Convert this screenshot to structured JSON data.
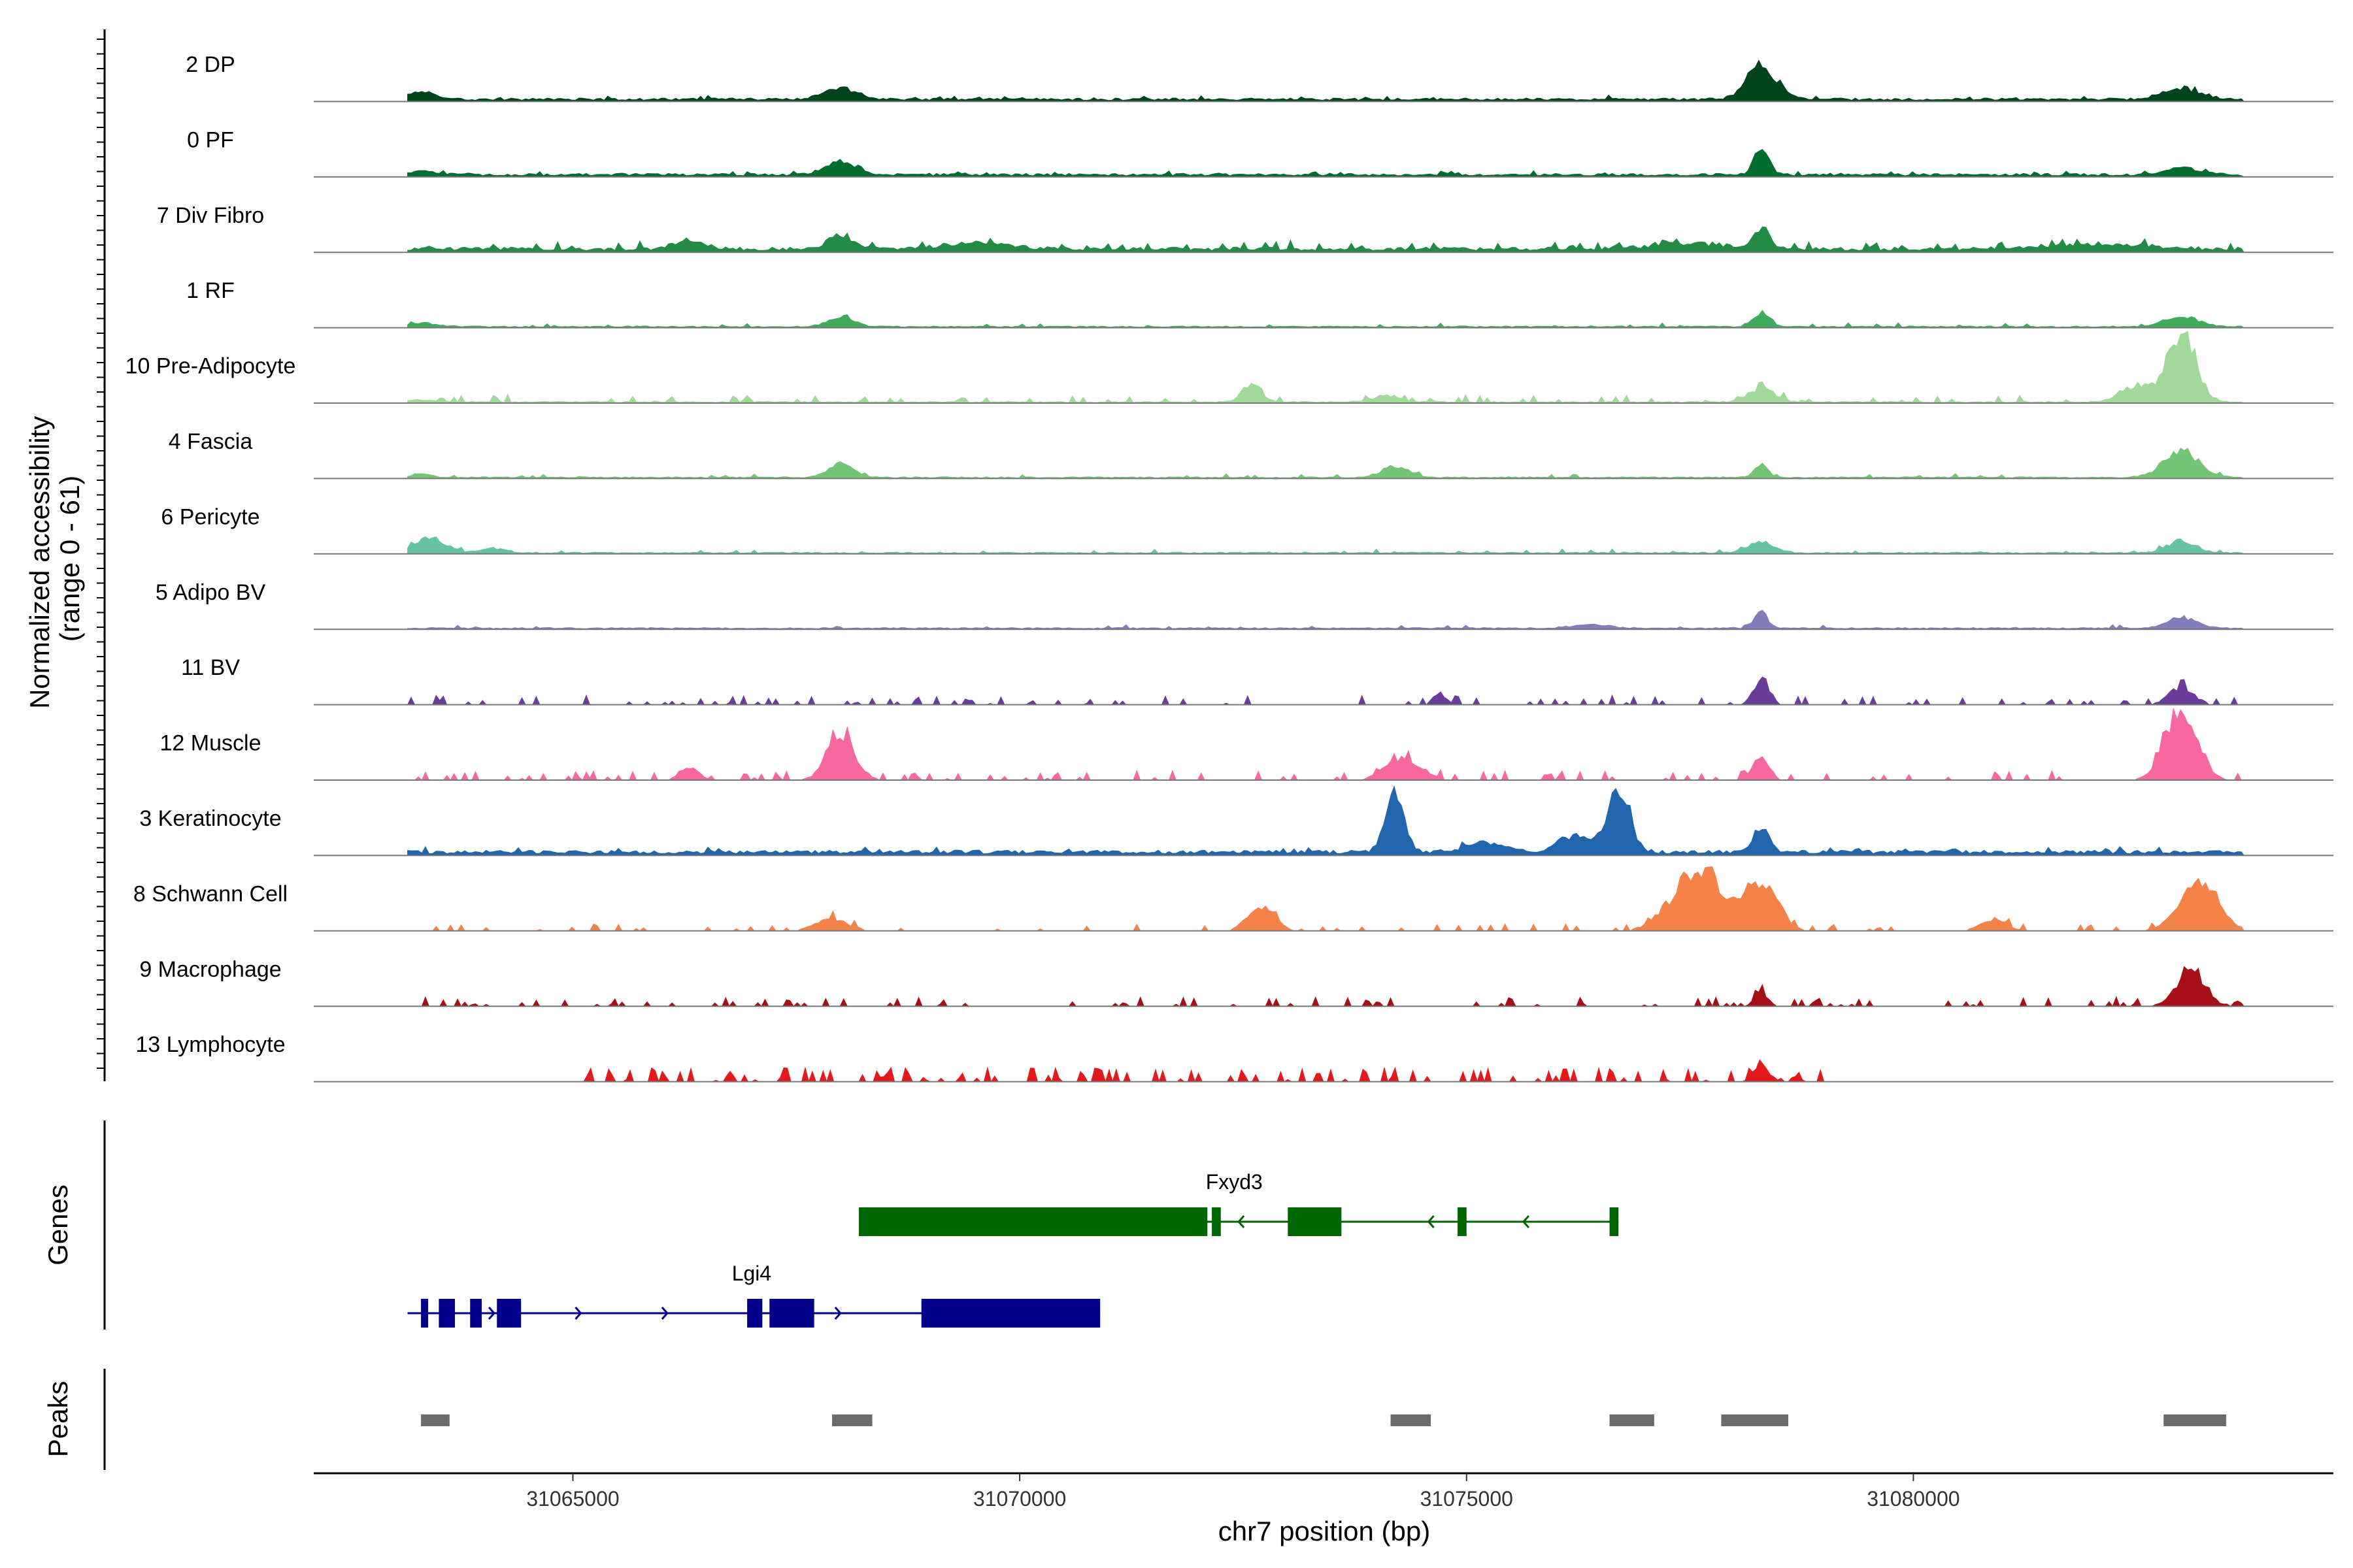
{
  "chart_data": {
    "type": "area",
    "title": "",
    "xlabel": "chr7 position (bp)",
    "ylabel_line1": "Normalized accessibility",
    "ylabel_line2": "(range 0 - 61)",
    "xlim": [
      31062100,
      31084700
    ],
    "ylim": [
      0,
      61
    ],
    "x_ticks": [
      31065000,
      31070000,
      31075000,
      31080000
    ],
    "x_tick_labels": [
      "31065000",
      "31070000",
      "31075000",
      "31080000"
    ],
    "bins": {
      "start": 31063150,
      "end": 31083700,
      "step": 40
    },
    "tracks": [
      {
        "name": "2 DP",
        "color": "#00441b",
        "baseline": 2,
        "ends": [
          31063150,
          31083700
        ],
        "peaks": [
          [
            31063300,
            220,
            6
          ],
          [
            31068000,
            260,
            10
          ],
          [
            31078300,
            240,
            28
          ],
          [
            31083000,
            300,
            9
          ]
        ]
      },
      {
        "name": "0 PF",
        "color": "#006d2c",
        "baseline": 2,
        "ends": [
          31063150,
          31083700
        ],
        "peaks": [
          [
            31063300,
            220,
            3
          ],
          [
            31068000,
            240,
            12
          ],
          [
            31078300,
            120,
            22
          ],
          [
            31083000,
            260,
            6
          ]
        ]
      },
      {
        "name": "7 Div Fibro",
        "color": "#238b45",
        "baseline": 3,
        "ends": [
          31063150,
          31083700
        ],
        "noise": 3,
        "peaks": [
          [
            31066300,
            250,
            7
          ],
          [
            31068000,
            200,
            12
          ],
          [
            31069500,
            500,
            5
          ],
          [
            31078300,
            120,
            18
          ],
          [
            31077500,
            600,
            5
          ],
          [
            31082000,
            800,
            4
          ]
        ]
      },
      {
        "name": "1 RF",
        "color": "#41ab5d",
        "baseline": 1,
        "ends": [
          31063150,
          31083700
        ],
        "peaks": [
          [
            31063300,
            220,
            3
          ],
          [
            31068000,
            200,
            9
          ],
          [
            31078300,
            120,
            12
          ],
          [
            31083000,
            260,
            9
          ]
        ]
      },
      {
        "name": "10 Pre-Adipocyte",
        "color": "#a1d99b",
        "baseline": 1,
        "ends": [
          31063150,
          31083700
        ],
        "noise": 3,
        "peaks": [
          [
            31063300,
            150,
            2
          ],
          [
            31072600,
            150,
            16
          ],
          [
            31074100,
            200,
            6
          ],
          [
            31078300,
            200,
            12
          ],
          [
            31083000,
            220,
            61
          ],
          [
            31082500,
            250,
            14
          ]
        ]
      },
      {
        "name": "4 Fascia",
        "color": "#74c476",
        "baseline": 1,
        "ends": [
          31063150,
          31083700
        ],
        "peaks": [
          [
            31063300,
            150,
            3
          ],
          [
            31068000,
            200,
            12
          ],
          [
            31074200,
            220,
            9
          ],
          [
            31078300,
            100,
            12
          ],
          [
            31083000,
            280,
            22
          ]
        ]
      },
      {
        "name": "6 Pericyte",
        "color": "#66c2a4",
        "baseline": 1,
        "ends": [
          31063150,
          31083700
        ],
        "peaks": [
          [
            31063400,
            250,
            12
          ],
          [
            31064100,
            200,
            4
          ],
          [
            31078300,
            200,
            10
          ],
          [
            31083000,
            220,
            10
          ]
        ]
      },
      {
        "name": "5 Adipo BV",
        "color": "#807dba",
        "baseline": 1,
        "ends": [
          31063150,
          31083700
        ],
        "peaks": [
          [
            31078300,
            100,
            14
          ],
          [
            31083000,
            240,
            9
          ],
          [
            31076400,
            300,
            3
          ]
        ]
      },
      {
        "name": "11 BV",
        "color": "#6a3d9a",
        "baseline": 0,
        "ends": [
          31063150,
          31083700
        ],
        "noise": 4,
        "peaks": [
          [
            31078300,
            120,
            22
          ],
          [
            31083000,
            200,
            14
          ],
          [
            31074700,
            100,
            10
          ]
        ]
      },
      {
        "name": "12 Muscle",
        "color": "#f768a1",
        "baseline": 0,
        "ends": [
          31063150,
          31083700
        ],
        "noise": 4,
        "peaks": [
          [
            31068000,
            220,
            36
          ],
          [
            31074300,
            280,
            18
          ],
          [
            31078300,
            120,
            22
          ],
          [
            31083000,
            250,
            60
          ],
          [
            31066300,
            150,
            10
          ]
        ]
      },
      {
        "name": "3 Keratinocyte",
        "color": "#2166ac",
        "baseline": 3,
        "ends": [
          31063150,
          31083700
        ],
        "noise": 2,
        "peaks": [
          [
            31074200,
            150,
            48
          ],
          [
            31076700,
            180,
            55
          ],
          [
            31076200,
            250,
            14
          ],
          [
            31078300,
            120,
            22
          ],
          [
            31075200,
            300,
            8
          ]
        ]
      },
      {
        "name": "8 Schwann Cell",
        "color": "#f4834a",
        "baseline": 0,
        "ends": [
          31063150,
          31083700
        ],
        "noise": 3,
        "peaks": [
          [
            31072700,
            200,
            22
          ],
          [
            31077600,
            400,
            52
          ],
          [
            31078300,
            250,
            40
          ],
          [
            31083200,
            300,
            38
          ],
          [
            31080900,
            200,
            10
          ],
          [
            31067900,
            250,
            10
          ]
        ]
      },
      {
        "name": "9 Macrophage",
        "color": "#a50f15",
        "baseline": 0,
        "ends": [
          31063150,
          31083700
        ],
        "noise": 4,
        "peaks": [
          [
            31083100,
            220,
            30
          ],
          [
            31078300,
            100,
            12
          ]
        ]
      },
      {
        "name": "13 Lymphocyte",
        "color": "#e31a1c",
        "baseline": 0,
        "ends": [
          31065000,
          31079000
        ],
        "noise": 6,
        "peaks": [
          [
            31078300,
            120,
            14
          ]
        ]
      }
    ],
    "genes_label": "Genes",
    "genes": [
      {
        "name": "Fxyd3",
        "color": "#006400",
        "strand": "-",
        "start": 31068200,
        "end": 31076700,
        "label_pos": 31072400,
        "exons": [
          [
            31068200,
            31072100
          ],
          [
            31072150,
            31072250
          ],
          [
            31073000,
            31073600
          ],
          [
            31074900,
            31075000
          ],
          [
            31076600,
            31076700
          ]
        ]
      },
      {
        "name": "Lgi4",
        "color": "#00008b",
        "strand": "+",
        "start": 31063150,
        "end": 31070900,
        "label_pos": 31067000,
        "exons": [
          [
            31063300,
            31063380
          ],
          [
            31063500,
            31063680
          ],
          [
            31063850,
            31063980
          ],
          [
            31064150,
            31064420
          ],
          [
            31066950,
            31067120
          ],
          [
            31067200,
            31067700
          ],
          [
            31068900,
            31070900
          ]
        ]
      }
    ],
    "peaks_label": "Peaks",
    "peaks_regions": [
      [
        31063300,
        31063620
      ],
      [
        31067900,
        31068350
      ],
      [
        31074150,
        31074600
      ],
      [
        31076600,
        31077100
      ],
      [
        31077850,
        31078600
      ],
      [
        31082800,
        31083500
      ]
    ]
  }
}
